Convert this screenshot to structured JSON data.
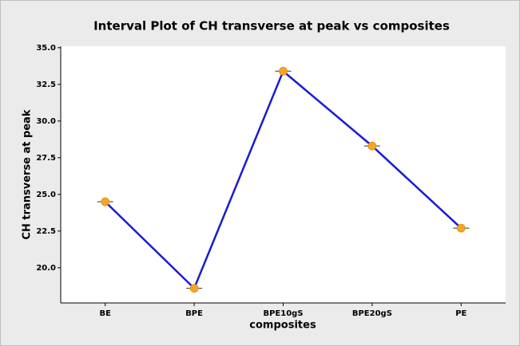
{
  "chart_data": {
    "type": "line",
    "title": "Interval Plot of CH transverse at peak vs composites",
    "x_label": "composites",
    "y_label": "CH transverse at peak",
    "categories": [
      "BE",
      "BPE",
      "BPE10gS",
      "BPE20gS",
      "PE"
    ],
    "series": [
      {
        "name": "CH transverse at peak",
        "color": "#1a1ad4",
        "marker_color": "#f5a623",
        "values": [
          24.5,
          18.6,
          33.4,
          28.3,
          22.7
        ]
      }
    ],
    "ylim": [
      17.6,
      35.1
    ],
    "yticks": [
      {
        "value": 20,
        "label": "20.0"
      },
      {
        "value": 22.5,
        "label": "22.5"
      },
      {
        "value": 25,
        "label": "25.0"
      },
      {
        "value": 27.5,
        "label": "27.5"
      },
      {
        "value": 30,
        "label": "30.0"
      },
      {
        "value": 32.5,
        "label": "32.5"
      },
      {
        "value": 35,
        "label": "35.0"
      }
    ],
    "grid": false
  }
}
